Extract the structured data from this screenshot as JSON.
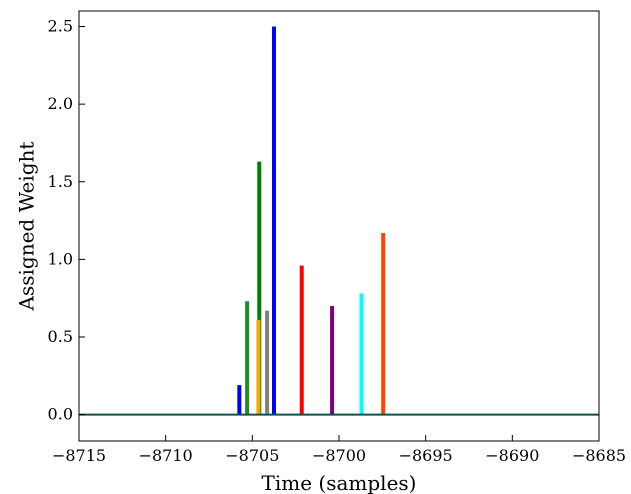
{
  "chart_data": {
    "type": "bar",
    "xlabel": "Time (samples)",
    "ylabel": "Assigned Weight",
    "xlim": [
      -8715,
      -8685
    ],
    "ylim": [
      -0.17,
      2.6
    ],
    "xticks": [
      -8715,
      -8710,
      -8705,
      -8700,
      -8695,
      -8690,
      -8685
    ],
    "xtick_labels": [
      "−8715",
      "−8710",
      "−8705",
      "−8700",
      "−8695",
      "−8690",
      "−8685"
    ],
    "yticks": [
      0.0,
      0.5,
      1.0,
      1.5,
      2.0,
      2.5
    ],
    "ytick_labels": [
      "0.0",
      "0.5",
      "1.0",
      "1.5",
      "2.0",
      "2.5"
    ],
    "grid": false,
    "baseline": {
      "y": 0.0,
      "color": "#1a4a4a"
    },
    "bars": [
      {
        "x": -8705.75,
        "value": 0.19,
        "color": "#0000ff"
      },
      {
        "x": -8705.3,
        "value": 0.73,
        "color": "#228b22"
      },
      {
        "x": -8704.6,
        "value": 1.63,
        "color": "#008000"
      },
      {
        "x": -8704.65,
        "value": 0.61,
        "color": "#ffa500"
      },
      {
        "x": -8704.15,
        "value": 0.67,
        "color": "#808080"
      },
      {
        "x": -8703.75,
        "value": 2.5,
        "color": "#0000ff"
      },
      {
        "x": -8702.15,
        "value": 0.96,
        "color": "#ff0000"
      },
      {
        "x": -8700.4,
        "value": 0.7,
        "color": "#800080"
      },
      {
        "x": -8698.7,
        "value": 0.78,
        "color": "#00ffff"
      },
      {
        "x": -8697.45,
        "value": 1.17,
        "color": "#ff4500"
      }
    ]
  }
}
